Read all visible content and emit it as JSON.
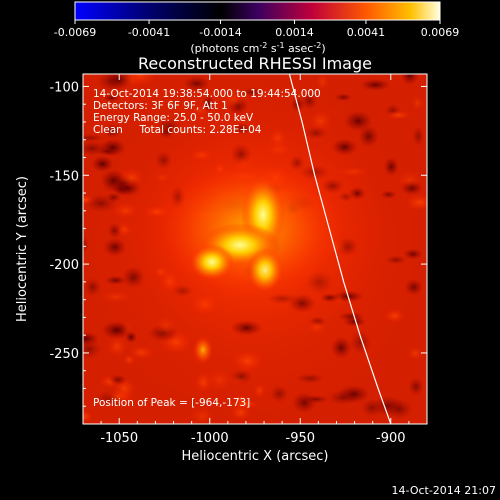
{
  "colorbar": {
    "ticks": [
      "-0.0069",
      "-0.0041",
      "-0.0014",
      "0.0014",
      "0.0041",
      "0.0069"
    ],
    "tick_values": [
      -0.0069,
      -0.0041,
      -0.0014,
      0.0014,
      0.0041,
      0.0069
    ],
    "range": [
      -0.0069,
      0.0069
    ],
    "unit_text": "(photons cm",
    "unit_exp1": "-2",
    "unit_mid": " s",
    "unit_exp2": "-1",
    "unit_mid2": " asec",
    "unit_exp3": "-2",
    "unit_close": ")"
  },
  "chart_data": {
    "type": "heatmap",
    "title": "Reconstructed RHESSI Image",
    "xlabel": "Heliocentric X (arcsec)",
    "ylabel": "Heliocentric Y (arcsec)",
    "xlim": [
      -1070,
      -880
    ],
    "ylim": [
      -290,
      -93
    ],
    "x_ticks": [
      -1050,
      -1000,
      -950,
      -900
    ],
    "x_tick_labels": [
      "-1050",
      "-1000",
      "-950",
      "-900"
    ],
    "y_ticks": [
      -100,
      -150,
      -200,
      -250
    ],
    "y_tick_labels": [
      "-100",
      "-150",
      "-200",
      "-250"
    ],
    "peak": {
      "x": -964,
      "y": -173
    },
    "limb_points": [
      [
        -956,
        -93
      ],
      [
        -949,
        -120
      ],
      [
        -942,
        -150
      ],
      [
        -934,
        -180
      ],
      [
        -926,
        -210
      ],
      [
        -917,
        -240
      ],
      [
        -907,
        -270
      ],
      [
        -900,
        -290
      ]
    ],
    "info": [
      "14-Oct-2014 19:38:54.000 to 19:44:54.000",
      "Detectors: 3F 6F 9F, Att 1",
      "Energy Range: 25.0 - 50.0 keV",
      "Clean     Total counts: 2.28E+04"
    ],
    "peak_label": "Position of Peak = [-964,-173]"
  },
  "footer": {
    "timestamp": "14-Oct-2014 21:07"
  }
}
